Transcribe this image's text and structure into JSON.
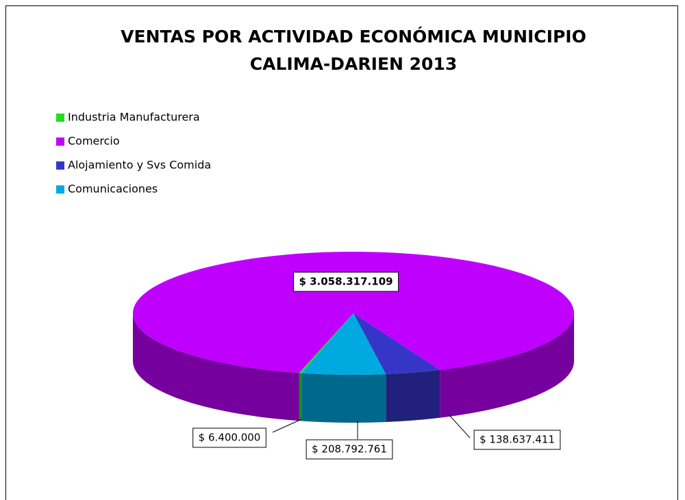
{
  "chart_data": {
    "type": "pie3d",
    "title_lines": [
      "VENTAS POR ACTIVIDAD ECONÓMICA MUNICIPIO",
      "CALIMA-DARIEN  2013"
    ],
    "categories": [
      "Industria Manufacturera",
      "Comercio",
      "Alojamiento y Svs Comida",
      "Comunicaciones"
    ],
    "values": [
      6400000,
      3058317109,
      138637411,
      208792761
    ],
    "value_labels": [
      "$ 6.400.000",
      "$ 3.058.317.109",
      "$ 138.637.411",
      "$ 208.792.761"
    ],
    "colors": [
      "#22dd22",
      "#bf00ff",
      "#3535c8",
      "#00a9e0"
    ],
    "legend": "top-left"
  }
}
